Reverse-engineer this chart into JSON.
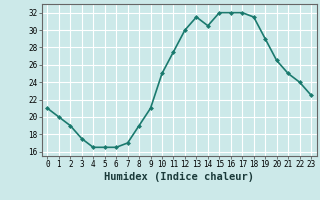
{
  "x": [
    0,
    1,
    2,
    3,
    4,
    5,
    6,
    7,
    8,
    9,
    10,
    11,
    12,
    13,
    14,
    15,
    16,
    17,
    18,
    19,
    20,
    21,
    22,
    23
  ],
  "y": [
    21,
    20,
    19,
    17.5,
    16.5,
    16.5,
    16.5,
    17,
    19,
    21,
    25,
    27.5,
    30,
    31.5,
    30.5,
    32,
    32,
    32,
    31.5,
    29,
    26.5,
    25,
    24,
    22.5
  ],
  "line_color": "#1a7a6e",
  "marker": "D",
  "marker_size": 2.0,
  "bg_color": "#cce9e9",
  "grid_color": "#ffffff",
  "xlabel": "Humidex (Indice chaleur)",
  "ylim": [
    15.5,
    33
  ],
  "xlim": [
    -0.5,
    23.5
  ],
  "yticks": [
    16,
    18,
    20,
    22,
    24,
    26,
    28,
    30,
    32
  ],
  "xticks": [
    0,
    1,
    2,
    3,
    4,
    5,
    6,
    7,
    8,
    9,
    10,
    11,
    12,
    13,
    14,
    15,
    16,
    17,
    18,
    19,
    20,
    21,
    22,
    23
  ],
  "tick_fontsize": 5.5,
  "label_fontsize": 7.5,
  "line_width": 1.2,
  "spine_color": "#666666",
  "tick_color": "#444444",
  "xlabel_color": "#1a3a3a"
}
